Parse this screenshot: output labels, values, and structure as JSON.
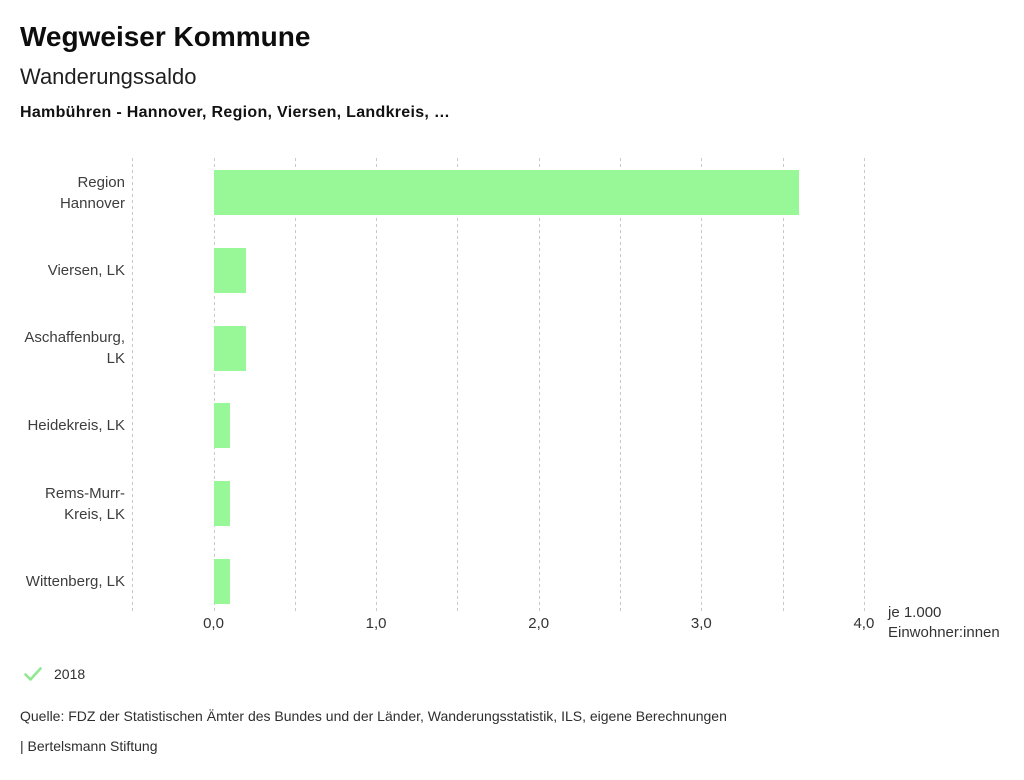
{
  "header": {
    "title": "Wegweiser Kommune",
    "subtitle": "Wanderungssaldo",
    "selection": "Hambühren - Hannover, Region, Viersen, Landkreis, …"
  },
  "chart_data": {
    "type": "bar",
    "orientation": "horizontal",
    "title": "Wanderungssaldo",
    "categories": [
      "Region Hannover",
      "Viersen, LK",
      "Aschaffenburg, LK",
      "Heidekreis, LK",
      "Rems-Murr-Kreis, LK",
      "Wittenberg, LK"
    ],
    "category_lines": [
      [
        "Region",
        "Hannover"
      ],
      [
        "Viersen, LK"
      ],
      [
        "Aschaffenburg,",
        "LK"
      ],
      [
        "Heidekreis, LK"
      ],
      [
        "Rems-Murr-",
        "Kreis, LK"
      ],
      [
        "Wittenberg, LK"
      ]
    ],
    "series": [
      {
        "name": "2018",
        "values": [
          3.6,
          0.2,
          0.2,
          0.1,
          0.1,
          0.1
        ]
      }
    ],
    "xlim": [
      0,
      4
    ],
    "x_ticks": [
      0,
      1,
      2,
      3,
      4
    ],
    "x_tick_labels": [
      "0,0",
      "1,0",
      "2,0",
      "3,0",
      "4,0"
    ],
    "gridlines": [
      -0.5,
      0,
      0.5,
      1,
      1.5,
      2,
      2.5,
      3,
      3.5,
      4
    ],
    "grid_style": "dashed",
    "unit_label_lines": [
      "je 1.000",
      "Einwohner:innen"
    ],
    "bar_color": "#98f898",
    "grid_color": "#c9c9c9",
    "legend": {
      "label": "2018",
      "icon": "check-icon",
      "icon_color": "#90e890",
      "position": "bottom-left"
    }
  },
  "footer": {
    "source": "Quelle: FDZ der Statistischen Ämter des Bundes und der Länder, Wanderungsstatistik, ILS, eigene Berechnungen",
    "brand": "| Bertelsmann Stiftung"
  }
}
